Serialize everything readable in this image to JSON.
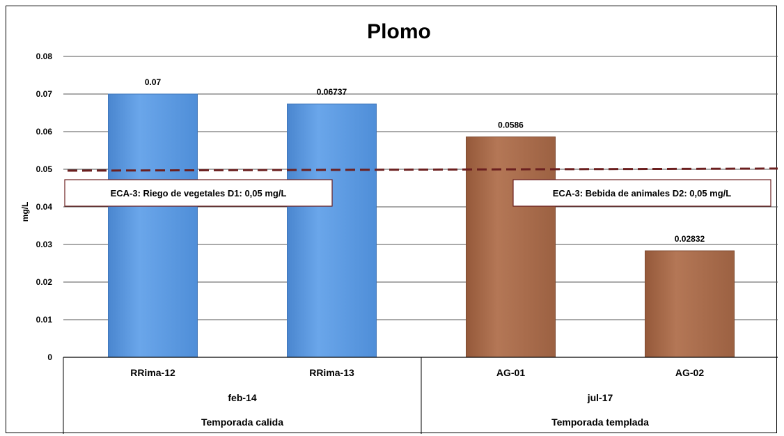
{
  "chart_data": {
    "type": "bar",
    "title": "Plomo",
    "ylabel": "mg/L",
    "ylim": [
      0,
      0.08
    ],
    "yticks": [
      "0",
      "0.01",
      "0.02",
      "0.03",
      "0.04",
      "0.05",
      "0.06",
      "0.07",
      "0.08"
    ],
    "grid": true,
    "categories": [
      "RRima-12",
      "RRima-13",
      "AG-01",
      "AG-02"
    ],
    "values": [
      0.07,
      0.06737,
      0.0586,
      0.02832
    ],
    "value_labels": [
      "0.07",
      "0.06737",
      "0.0586",
      "0.02832"
    ],
    "bar_colors": [
      "#5b9ae0",
      "#5b9ae0",
      "#a86b4a",
      "#a86b4a"
    ],
    "groups": [
      {
        "date": "feb-14",
        "season": "Temporada calida",
        "members": [
          0,
          1
        ]
      },
      {
        "date": "jul-17",
        "season": "Temporada templada",
        "members": [
          2,
          3
        ]
      }
    ],
    "reference_line": {
      "value": 0.05,
      "color": "#6b1f1f"
    },
    "annotations": [
      "ECA-3: Riego de vegetales D1:  0,05  mg/L",
      "ECA-3: Bebida de animales D2:  0,05  mg/L"
    ]
  }
}
